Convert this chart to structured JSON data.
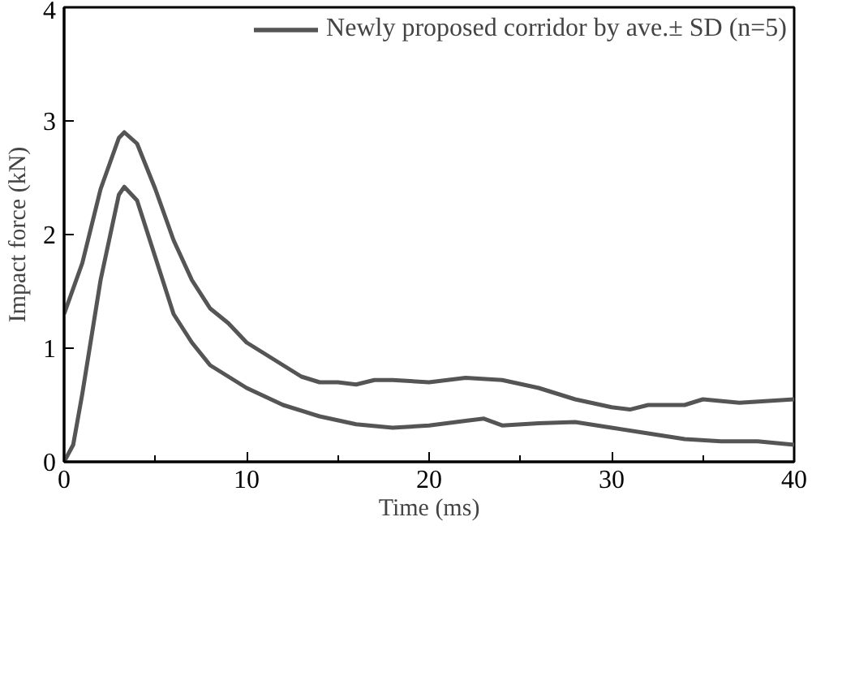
{
  "chart_data": {
    "type": "line",
    "xlabel": "Time (ms)",
    "ylabel": "Impact force (kN)",
    "xlim": [
      0,
      40
    ],
    "ylim": [
      0,
      4
    ],
    "xticks": [
      0,
      {
        "value": 5,
        "label": null
      },
      10,
      {
        "value": 15,
        "label": null
      },
      20,
      {
        "value": 25,
        "label": null
      },
      30,
      {
        "value": 35,
        "label": null
      },
      40
    ],
    "yticks": [
      0,
      1,
      2,
      3,
      4
    ],
    "grid": false,
    "legend": "top",
    "marker": "none",
    "line_style": "solid",
    "series": [
      {
        "name": "Newly proposed corridor by ave.± SD (n=5)",
        "color": "#555555",
        "x": [
          0,
          1,
          2,
          3,
          3.3,
          4,
          5,
          6,
          7,
          8,
          9,
          10,
          11,
          12,
          13,
          14,
          15,
          16,
          17,
          18,
          20,
          22,
          24,
          26,
          28,
          30,
          31,
          32,
          34,
          35,
          37,
          40
        ],
        "values": [
          1.3,
          1.75,
          2.4,
          2.85,
          2.9,
          2.8,
          2.4,
          1.95,
          1.6,
          1.35,
          1.22,
          1.05,
          0.95,
          0.85,
          0.75,
          0.7,
          0.7,
          0.68,
          0.72,
          0.72,
          0.7,
          0.74,
          0.72,
          0.65,
          0.55,
          0.48,
          0.46,
          0.5,
          0.5,
          0.55,
          0.52,
          0.55
        ]
      },
      {
        "color": "#555555",
        "x": [
          0,
          0.5,
          1,
          2,
          3,
          3.3,
          4,
          5,
          6,
          7,
          8,
          10,
          12,
          14,
          16,
          18,
          20,
          22,
          23,
          24,
          26,
          28,
          30,
          32,
          34,
          36,
          38,
          40
        ],
        "values": [
          0,
          0.15,
          0.6,
          1.6,
          2.35,
          2.42,
          2.3,
          1.8,
          1.3,
          1.05,
          0.85,
          0.65,
          0.5,
          0.4,
          0.33,
          0.3,
          0.32,
          0.36,
          0.38,
          0.32,
          0.34,
          0.35,
          0.3,
          0.25,
          0.2,
          0.18,
          0.18,
          0.15
        ]
      }
    ]
  }
}
